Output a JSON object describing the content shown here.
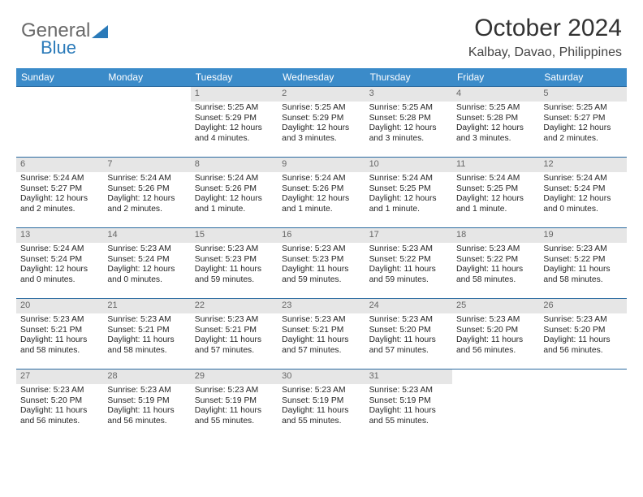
{
  "logo": {
    "text1": "General",
    "text2": "Blue"
  },
  "title": "October 2024",
  "subtitle": "Kalbay, Davao, Philippines",
  "colors": {
    "header_bg": "#3b8bc9",
    "header_text": "#ffffff",
    "daynum_bg": "#e6e6e6",
    "daynum_text": "#666666",
    "week_border": "#2a6aa0",
    "logo_gray": "#6a6a6a",
    "logo_blue": "#2a7ab9"
  },
  "day_headers": [
    "Sunday",
    "Monday",
    "Tuesday",
    "Wednesday",
    "Thursday",
    "Friday",
    "Saturday"
  ],
  "weeks": [
    [
      null,
      null,
      {
        "n": "1",
        "sr": "5:25 AM",
        "ss": "5:29 PM",
        "dl": "12 hours and 4 minutes."
      },
      {
        "n": "2",
        "sr": "5:25 AM",
        "ss": "5:29 PM",
        "dl": "12 hours and 3 minutes."
      },
      {
        "n": "3",
        "sr": "5:25 AM",
        "ss": "5:28 PM",
        "dl": "12 hours and 3 minutes."
      },
      {
        "n": "4",
        "sr": "5:25 AM",
        "ss": "5:28 PM",
        "dl": "12 hours and 3 minutes."
      },
      {
        "n": "5",
        "sr": "5:25 AM",
        "ss": "5:27 PM",
        "dl": "12 hours and 2 minutes."
      }
    ],
    [
      {
        "n": "6",
        "sr": "5:24 AM",
        "ss": "5:27 PM",
        "dl": "12 hours and 2 minutes."
      },
      {
        "n": "7",
        "sr": "5:24 AM",
        "ss": "5:26 PM",
        "dl": "12 hours and 2 minutes."
      },
      {
        "n": "8",
        "sr": "5:24 AM",
        "ss": "5:26 PM",
        "dl": "12 hours and 1 minute."
      },
      {
        "n": "9",
        "sr": "5:24 AM",
        "ss": "5:26 PM",
        "dl": "12 hours and 1 minute."
      },
      {
        "n": "10",
        "sr": "5:24 AM",
        "ss": "5:25 PM",
        "dl": "12 hours and 1 minute."
      },
      {
        "n": "11",
        "sr": "5:24 AM",
        "ss": "5:25 PM",
        "dl": "12 hours and 1 minute."
      },
      {
        "n": "12",
        "sr": "5:24 AM",
        "ss": "5:24 PM",
        "dl": "12 hours and 0 minutes."
      }
    ],
    [
      {
        "n": "13",
        "sr": "5:24 AM",
        "ss": "5:24 PM",
        "dl": "12 hours and 0 minutes."
      },
      {
        "n": "14",
        "sr": "5:23 AM",
        "ss": "5:24 PM",
        "dl": "12 hours and 0 minutes."
      },
      {
        "n": "15",
        "sr": "5:23 AM",
        "ss": "5:23 PM",
        "dl": "11 hours and 59 minutes."
      },
      {
        "n": "16",
        "sr": "5:23 AM",
        "ss": "5:23 PM",
        "dl": "11 hours and 59 minutes."
      },
      {
        "n": "17",
        "sr": "5:23 AM",
        "ss": "5:22 PM",
        "dl": "11 hours and 59 minutes."
      },
      {
        "n": "18",
        "sr": "5:23 AM",
        "ss": "5:22 PM",
        "dl": "11 hours and 58 minutes."
      },
      {
        "n": "19",
        "sr": "5:23 AM",
        "ss": "5:22 PM",
        "dl": "11 hours and 58 minutes."
      }
    ],
    [
      {
        "n": "20",
        "sr": "5:23 AM",
        "ss": "5:21 PM",
        "dl": "11 hours and 58 minutes."
      },
      {
        "n": "21",
        "sr": "5:23 AM",
        "ss": "5:21 PM",
        "dl": "11 hours and 58 minutes."
      },
      {
        "n": "22",
        "sr": "5:23 AM",
        "ss": "5:21 PM",
        "dl": "11 hours and 57 minutes."
      },
      {
        "n": "23",
        "sr": "5:23 AM",
        "ss": "5:21 PM",
        "dl": "11 hours and 57 minutes."
      },
      {
        "n": "24",
        "sr": "5:23 AM",
        "ss": "5:20 PM",
        "dl": "11 hours and 57 minutes."
      },
      {
        "n": "25",
        "sr": "5:23 AM",
        "ss": "5:20 PM",
        "dl": "11 hours and 56 minutes."
      },
      {
        "n": "26",
        "sr": "5:23 AM",
        "ss": "5:20 PM",
        "dl": "11 hours and 56 minutes."
      }
    ],
    [
      {
        "n": "27",
        "sr": "5:23 AM",
        "ss": "5:20 PM",
        "dl": "11 hours and 56 minutes."
      },
      {
        "n": "28",
        "sr": "5:23 AM",
        "ss": "5:19 PM",
        "dl": "11 hours and 56 minutes."
      },
      {
        "n": "29",
        "sr": "5:23 AM",
        "ss": "5:19 PM",
        "dl": "11 hours and 55 minutes."
      },
      {
        "n": "30",
        "sr": "5:23 AM",
        "ss": "5:19 PM",
        "dl": "11 hours and 55 minutes."
      },
      {
        "n": "31",
        "sr": "5:23 AM",
        "ss": "5:19 PM",
        "dl": "11 hours and 55 minutes."
      },
      null,
      null
    ]
  ],
  "labels": {
    "sunrise": "Sunrise: ",
    "sunset": "Sunset: ",
    "daylight": "Daylight: "
  }
}
